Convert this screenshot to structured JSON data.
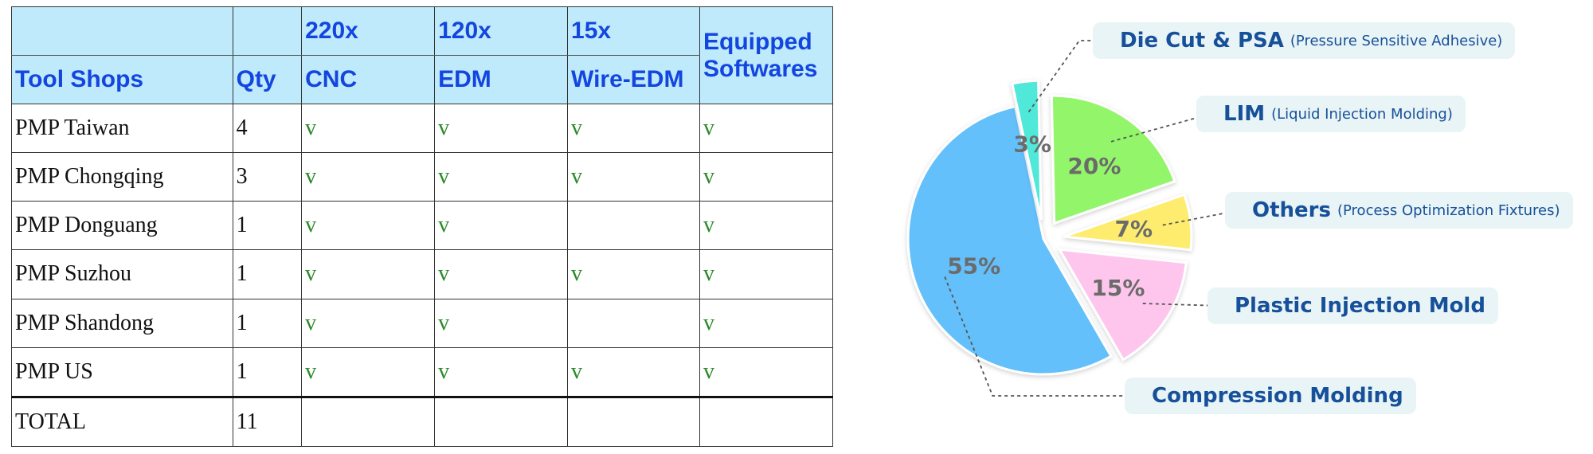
{
  "table": {
    "headers": {
      "top": [
        "",
        "",
        "220x",
        "120x",
        "15x"
      ],
      "bottom": [
        "Tool Shops",
        "Qty",
        "CNC",
        "EDM",
        "Wire-EDM"
      ],
      "equipped": "Equipped Softwares"
    },
    "rows": [
      [
        "PMP Taiwan",
        "4",
        "v",
        "v",
        "v",
        "v"
      ],
      [
        "PMP Chongqing",
        "3",
        "v",
        "v",
        "v",
        "v"
      ],
      [
        "PMP Donguang",
        "1",
        "v",
        "v",
        "",
        "v"
      ],
      [
        "PMP Suzhou",
        "1",
        "v",
        "v",
        "v",
        "v"
      ],
      [
        "PMP Shandong",
        "1",
        "v",
        "v",
        "",
        "v"
      ],
      [
        "PMP US",
        "1",
        "v",
        "v",
        "v",
        "v"
      ]
    ],
    "total": [
      "TOTAL",
      "11",
      "",
      "",
      "",
      ""
    ]
  },
  "chart_data": {
    "type": "pie",
    "title": "",
    "legend": "callouts",
    "slices": [
      {
        "label": "Compression Molding",
        "note": "",
        "value": 55,
        "value_label": "55%",
        "color": "#63c0fb"
      },
      {
        "label": "Die Cut & PSA",
        "note": "(Pressure Sensitive Adhesive)",
        "value": 3,
        "value_label": "3%",
        "color": "#4fe8d9"
      },
      {
        "label": "LIM",
        "note": "(Liquid Injection Molding)",
        "value": 20,
        "value_label": "20%",
        "color": "#93f56a"
      },
      {
        "label": "Others",
        "note": "(Process Optimization Fixtures)",
        "value": 7,
        "value_label": "7%",
        "color": "#fdec6e"
      },
      {
        "label": "Plastic Injection Mold",
        "note": "",
        "value": 15,
        "value_label": "15%",
        "color": "#fec6ec"
      }
    ]
  }
}
